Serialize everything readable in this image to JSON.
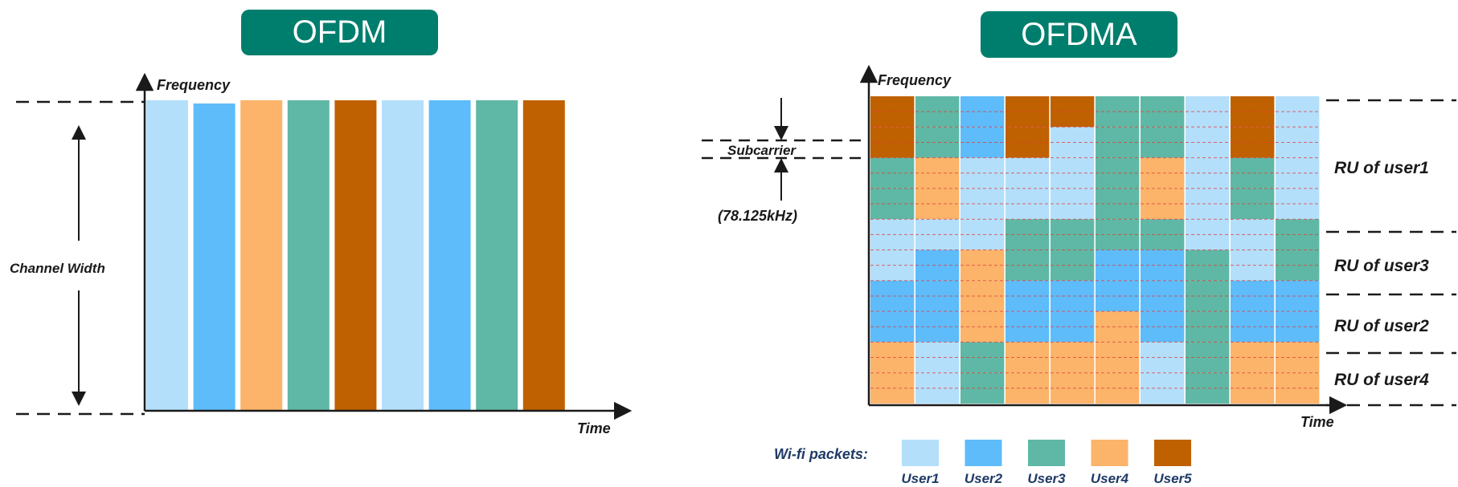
{
  "ofdm": {
    "title": "OFDM",
    "y_axis_label": "Frequency",
    "x_axis_label": "Time",
    "channel_label": "Channel Width",
    "columns": [
      "User1",
      "User2",
      "User4",
      "User3",
      "User5",
      "User1",
      "User2",
      "User3",
      "User5"
    ]
  },
  "ofdma": {
    "title": "OFDMA",
    "y_axis_label": "Frequency",
    "x_axis_label": "Time",
    "subcarrier_label": "Subcarrier",
    "subcarrier_value": "(78.125kHz)",
    "ru_labels": [
      "RU of user1",
      "RU of user3",
      "RU of user2",
      "RU of user4"
    ],
    "grid_rows": 10,
    "grid": [
      [
        "User5",
        "User3",
        "User2",
        "User5",
        "User5",
        "User3",
        "User3",
        "User1",
        "User5",
        "User1"
      ],
      [
        "User5",
        "User3",
        "User2",
        "User5",
        "User1",
        "User3",
        "User3",
        "User1",
        "User5",
        "User1"
      ],
      [
        "User3",
        "User4",
        "User1",
        "User1",
        "User1",
        "User3",
        "User4",
        "User1",
        "User3",
        "User1"
      ],
      [
        "User3",
        "User4",
        "User1",
        "User1",
        "User1",
        "User3",
        "User4",
        "User1",
        "User3",
        "User1"
      ],
      [
        "User1",
        "User1",
        "User1",
        "User3",
        "User3",
        "User3",
        "User3",
        "User1",
        "User1",
        "User3"
      ],
      [
        "User1",
        "User2",
        "User4",
        "User3",
        "User3",
        "User2",
        "User2",
        "User3",
        "User1",
        "User3"
      ],
      [
        "User2",
        "User2",
        "User4",
        "User2",
        "User2",
        "User2",
        "User2",
        "User3",
        "User2",
        "User2"
      ],
      [
        "User2",
        "User2",
        "User4",
        "User2",
        "User2",
        "User4",
        "User2",
        "User3",
        "User2",
        "User2"
      ],
      [
        "User4",
        "User1",
        "User3",
        "User4",
        "User4",
        "User4",
        "User1",
        "User3",
        "User4",
        "User4"
      ],
      [
        "User4",
        "User1",
        "User3",
        "User4",
        "User4",
        "User4",
        "User1",
        "User3",
        "User4",
        "User4"
      ]
    ]
  },
  "legend": {
    "title": "Wi-fi packets:",
    "items": [
      {
        "label": "User1",
        "color": "#b3dffb"
      },
      {
        "label": "User2",
        "color": "#5ebcfa"
      },
      {
        "label": "User3",
        "color": "#5fb8a5"
      },
      {
        "label": "User4",
        "color": "#fbb469"
      },
      {
        "label": "User5",
        "color": "#bf6101"
      }
    ]
  },
  "colors": {
    "banner": "#007e6d",
    "axis": "#1a1a1a",
    "subcarrier_line": "#e03a3a",
    "legend_text": "#1f3a66"
  }
}
